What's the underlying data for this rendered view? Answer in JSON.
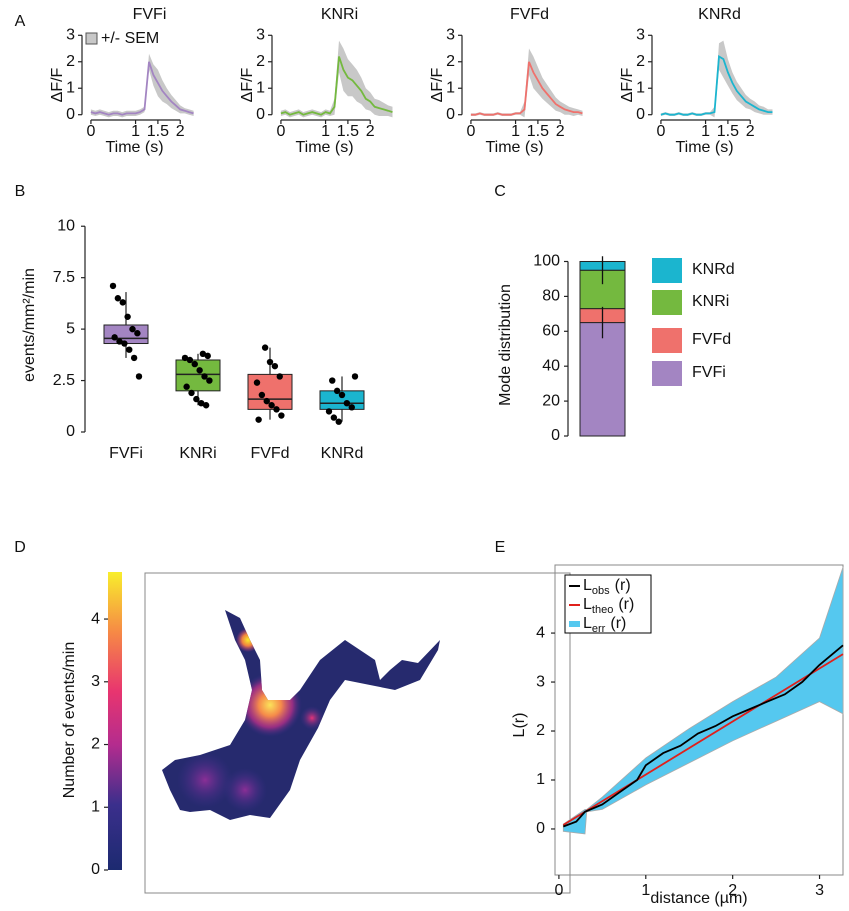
{
  "panel_labels": [
    "A",
    "B",
    "C",
    "D",
    "E"
  ],
  "chart_data": [
    {
      "type": "line",
      "title": "FVFi",
      "xlabel": "Time (s)",
      "ylabel": "ΔF/F",
      "legend": "+/- SEM",
      "color": "#a385c2",
      "band_color": "#c8c8c8",
      "xlim": [
        -0.2,
        2.6
      ],
      "ylim": [
        -0.2,
        3.2
      ],
      "xticks": [
        0,
        1,
        1.5,
        2
      ],
      "yticks": [
        0,
        1,
        2,
        3
      ],
      "x": [
        0,
        0.1,
        0.2,
        0.3,
        0.4,
        0.5,
        0.6,
        0.7,
        0.8,
        0.9,
        1,
        1.1,
        1.2,
        1.3,
        1.4,
        1.5,
        1.6,
        1.7,
        1.8,
        1.9,
        2,
        2.1,
        2.2,
        2.3
      ],
      "values": [
        0.1,
        0.05,
        0.1,
        0.05,
        0,
        0.05,
        0.05,
        0,
        0.05,
        0.05,
        0.05,
        0.1,
        0.2,
        2.0,
        1.5,
        1.2,
        0.9,
        0.7,
        0.5,
        0.35,
        0.2,
        0.15,
        0.1,
        0.05
      ],
      "sem": [
        0.1,
        0.1,
        0.1,
        0.1,
        0.1,
        0.1,
        0.1,
        0.1,
        0.1,
        0.1,
        0.1,
        0.1,
        0.1,
        0.3,
        0.4,
        0.5,
        0.4,
        0.3,
        0.25,
        0.2,
        0.15,
        0.1,
        0.1,
        0.1
      ]
    },
    {
      "type": "line",
      "title": "KNRi",
      "xlabel": "Time (s)",
      "ylabel": "ΔF/F",
      "color": "#74b93f",
      "band_color": "#c8c8c8",
      "xlim": [
        -0.2,
        2.6
      ],
      "ylim": [
        -0.2,
        3.2
      ],
      "xticks": [
        0,
        1,
        1.5,
        2
      ],
      "yticks": [
        0,
        1,
        2,
        3
      ],
      "x": [
        0,
        0.1,
        0.2,
        0.3,
        0.4,
        0.5,
        0.6,
        0.7,
        0.8,
        0.9,
        1,
        1.1,
        1.2,
        1.3,
        1.4,
        1.5,
        1.6,
        1.7,
        1.8,
        1.9,
        2,
        2.1,
        2.2,
        2.3,
        2.4,
        2.5
      ],
      "values": [
        0.05,
        0.1,
        0,
        0.05,
        0.1,
        0,
        0.05,
        0.1,
        0.05,
        0,
        0.1,
        0.05,
        0.3,
        2.2,
        1.7,
        1.4,
        1.3,
        1.1,
        0.9,
        0.6,
        0.5,
        0.3,
        0.25,
        0.2,
        0.15,
        0.1
      ],
      "sem": [
        0.1,
        0.1,
        0.1,
        0.1,
        0.1,
        0.1,
        0.1,
        0.1,
        0.1,
        0.1,
        0.1,
        0.1,
        0.3,
        0.6,
        0.8,
        0.7,
        0.6,
        0.6,
        0.5,
        0.4,
        0.35,
        0.3,
        0.3,
        0.25,
        0.2,
        0.2
      ]
    },
    {
      "type": "line",
      "title": "FVFd",
      "xlabel": "Time (s)",
      "ylabel": "ΔF/F",
      "color": "#ef716c",
      "band_color": "#c8c8c8",
      "xlim": [
        -0.2,
        2.6
      ],
      "ylim": [
        -0.2,
        3.2
      ],
      "xticks": [
        0,
        1,
        1.5,
        2
      ],
      "yticks": [
        0,
        1,
        2,
        3
      ],
      "x": [
        0,
        0.1,
        0.2,
        0.3,
        0.4,
        0.5,
        0.6,
        0.7,
        0.8,
        0.9,
        1,
        1.1,
        1.2,
        1.3,
        1.4,
        1.5,
        1.6,
        1.7,
        1.8,
        1.9,
        2,
        2.1,
        2.2,
        2.3,
        2.4,
        2.5
      ],
      "values": [
        0,
        0,
        0.05,
        0,
        0,
        0,
        0.05,
        0,
        0,
        0,
        0.05,
        0.05,
        0.2,
        2.0,
        1.6,
        1.3,
        1.0,
        0.8,
        0.6,
        0.4,
        0.3,
        0.2,
        0.15,
        0.1,
        0.1,
        0.05
      ],
      "sem": [
        0.05,
        0.05,
        0.05,
        0.05,
        0.05,
        0.05,
        0.05,
        0.05,
        0.05,
        0.05,
        0.05,
        0.05,
        0.3,
        0.5,
        0.6,
        0.5,
        0.4,
        0.35,
        0.3,
        0.25,
        0.2,
        0.2,
        0.15,
        0.15,
        0.1,
        0.1
      ]
    },
    {
      "type": "line",
      "title": "KNRd",
      "xlabel": "Time (s)",
      "ylabel": "ΔF/F",
      "color": "#1bb5cf",
      "band_color": "#c8c8c8",
      "xlim": [
        -0.2,
        2.6
      ],
      "ylim": [
        -0.2,
        3.2
      ],
      "xticks": [
        0,
        1,
        1.5,
        2
      ],
      "yticks": [
        0,
        1,
        2,
        3
      ],
      "x": [
        0,
        0.1,
        0.2,
        0.3,
        0.4,
        0.5,
        0.6,
        0.7,
        0.8,
        0.9,
        1,
        1.1,
        1.2,
        1.3,
        1.4,
        1.5,
        1.6,
        1.7,
        1.8,
        1.9,
        2,
        2.1,
        2.2,
        2.3,
        2.4,
        2.5
      ],
      "values": [
        0,
        0.05,
        0,
        0,
        0.05,
        0,
        0,
        0.05,
        0,
        0,
        0.05,
        0.05,
        0.1,
        2.2,
        2.1,
        1.6,
        1.2,
        0.9,
        0.7,
        0.5,
        0.4,
        0.3,
        0.2,
        0.15,
        0.1,
        0.1
      ],
      "sem": [
        0.05,
        0.05,
        0.05,
        0.05,
        0.05,
        0.05,
        0.05,
        0.05,
        0.05,
        0.05,
        0.05,
        0.05,
        0.2,
        0.5,
        0.7,
        0.5,
        0.4,
        0.35,
        0.3,
        0.25,
        0.2,
        0.2,
        0.15,
        0.15,
        0.1,
        0.1
      ]
    },
    {
      "type": "box",
      "ylabel": "events/mm²/min",
      "categories": [
        "FVFi",
        "KNRi",
        "FVFd",
        "KNRd"
      ],
      "colors": [
        "#a385c2",
        "#74b93f",
        "#ef716c",
        "#1bb5cf"
      ],
      "ylim": [
        0,
        10.4
      ],
      "yticks": [
        0,
        2.5,
        5,
        7.5,
        10
      ],
      "boxes": [
        {
          "whisker_low": 3.6,
          "q1": 4.3,
          "median": 4.55,
          "q3": 5.2,
          "whisker_high": 6.8,
          "points": [
            7.1,
            6.5,
            6.3,
            5.6,
            5.0,
            4.8,
            4.6,
            4.4,
            4.3,
            4.0,
            3.6,
            2.7
          ]
        },
        {
          "whisker_low": 1.3,
          "q1": 2.0,
          "median": 2.8,
          "q3": 3.5,
          "whisker_high": 3.8,
          "points": [
            3.8,
            3.7,
            3.6,
            3.5,
            3.3,
            3.0,
            2.7,
            2.5,
            2.2,
            1.9,
            1.6,
            1.4,
            1.3
          ]
        },
        {
          "whisker_low": 0.6,
          "q1": 1.1,
          "median": 1.6,
          "q3": 2.8,
          "whisker_high": 4.1,
          "points": [
            4.1,
            3.4,
            3.2,
            2.7,
            2.4,
            1.8,
            1.5,
            1.3,
            1.1,
            0.8,
            0.6
          ]
        },
        {
          "whisker_low": 0.5,
          "q1": 1.1,
          "median": 1.4,
          "q3": 2.0,
          "whisker_high": 2.7,
          "points": [
            2.7,
            2.5,
            2.0,
            1.8,
            1.4,
            1.2,
            1.0,
            0.7,
            0.5
          ]
        }
      ]
    },
    {
      "type": "stacked_bar",
      "ylabel": "Mode distribution",
      "categories": [
        null
      ],
      "ylim": [
        0,
        102
      ],
      "yticks": [
        0,
        20,
        40,
        60,
        80,
        100
      ],
      "series": [
        {
          "name": "FVFi",
          "color": "#a385c2",
          "values": [
            65
          ],
          "errors": [
            9
          ]
        },
        {
          "name": "FVFd",
          "color": "#ef716c",
          "values": [
            8
          ]
        },
        {
          "name": "KNRi",
          "color": "#74b93f",
          "values": [
            22
          ],
          "errors": [
            8
          ]
        },
        {
          "name": "KNRd",
          "color": "#1bb5cf",
          "values": [
            5
          ]
        }
      ]
    },
    {
      "type": "heatmap",
      "colorbar_label": "Number of events/min",
      "colorbar_lim": [
        0,
        4.75
      ],
      "colorbar_ticks": [
        0,
        1,
        2,
        3,
        4
      ]
    },
    {
      "type": "line",
      "xlabel": "distance (µm)",
      "ylabel": "L(r)",
      "xlim": [
        -0.045,
        3.27
      ],
      "ylim": [
        -0.94,
        5.39
      ],
      "xticks": [
        0,
        1,
        2,
        3
      ],
      "yticks": [
        0,
        1,
        2,
        3,
        4
      ],
      "series": [
        {
          "name": "L",
          "subscript": "obs",
          "suffix": "(r)",
          "color": "#000000",
          "x": [
            0.05,
            0.2,
            0.3,
            0.5,
            0.7,
            0.9,
            1,
            1.2,
            1.4,
            1.6,
            1.8,
            2,
            2.2,
            2.4,
            2.6,
            2.8,
            3,
            3.27
          ],
          "values": [
            0.05,
            0.15,
            0.35,
            0.5,
            0.75,
            1.0,
            1.3,
            1.55,
            1.7,
            1.95,
            2.1,
            2.3,
            2.45,
            2.6,
            2.75,
            3.0,
            3.35,
            3.75
          ]
        },
        {
          "name": "L",
          "subscript": "theo",
          "suffix": "(r)",
          "color": "#e0201b",
          "x": [
            0.05,
            3.27
          ],
          "values": [
            0.08,
            3.57
          ]
        },
        {
          "name": "L",
          "subscript": "err",
          "suffix": "(r)",
          "color": "#55c8ef",
          "x": [
            0.05,
            0.3,
            0.32,
            0.5,
            1,
            1.5,
            2,
            2.5,
            3,
            3.27
          ],
          "lower": [
            -0.05,
            -0.1,
            0.35,
            0.4,
            0.9,
            1.35,
            1.8,
            2.2,
            2.6,
            2.35
          ],
          "upper": [
            0.1,
            0.4,
            0.4,
            0.65,
            1.45,
            2.05,
            2.6,
            3.1,
            3.9,
            5.35
          ]
        }
      ]
    }
  ]
}
